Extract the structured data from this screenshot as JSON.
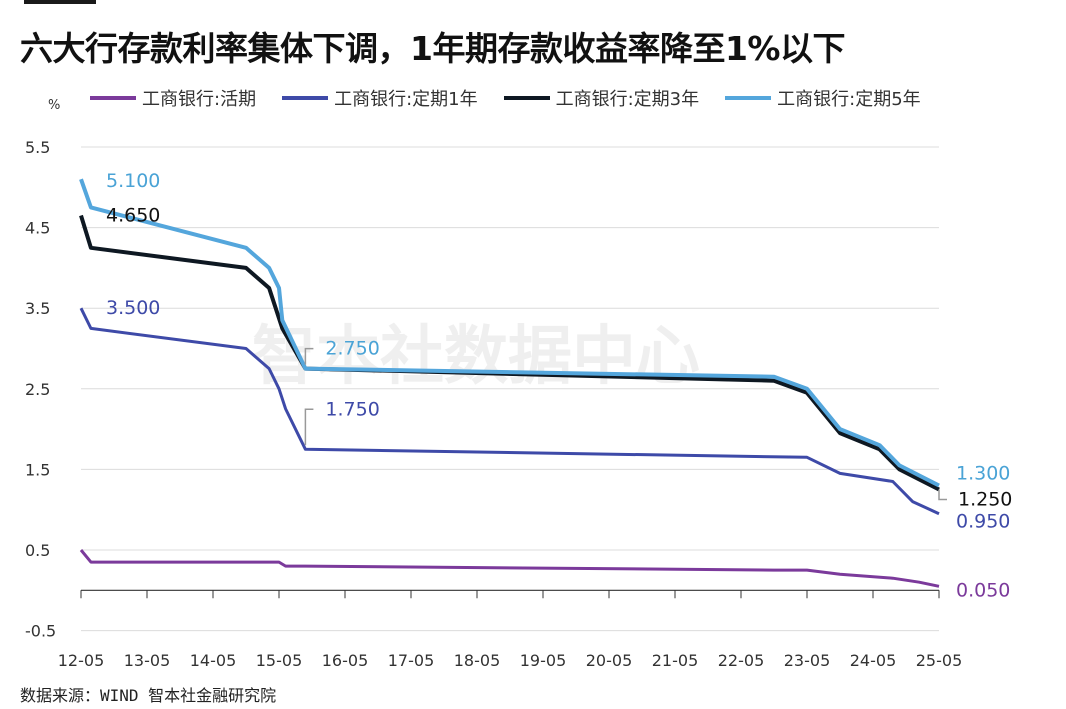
{
  "title": "六大行存款利率集体下调，1年期存款收益率降至1%以下",
  "source": "数据来源：WIND 智本社金融研究院",
  "watermark": "智本社数据中心",
  "chart_data": {
    "type": "line",
    "unit": "%",
    "ylim": [
      -0.5,
      5.5
    ],
    "yticks": [
      5.5,
      4.5,
      3.5,
      2.5,
      1.5,
      0.5,
      -0.5
    ],
    "xticks": [
      "12-05",
      "13-05",
      "14-05",
      "15-05",
      "16-05",
      "17-05",
      "18-05",
      "19-05",
      "20-05",
      "21-05",
      "22-05",
      "23-05",
      "24-05",
      "25-05"
    ],
    "grid": true,
    "legend_position": "top",
    "series": [
      {
        "name": "工商银行:活期",
        "color": "#7b3a9b",
        "points": [
          [
            0,
            0.5
          ],
          [
            0.15,
            0.35
          ],
          [
            3.0,
            0.35
          ],
          [
            3.1,
            0.3
          ],
          [
            3.4,
            0.3
          ],
          [
            10.5,
            0.25
          ],
          [
            11.0,
            0.25
          ],
          [
            11.5,
            0.2
          ],
          [
            12.3,
            0.15
          ],
          [
            12.7,
            0.1
          ],
          [
            13.0,
            0.05
          ]
        ],
        "end_label": "0.050",
        "label_color": "#7b3a9b"
      },
      {
        "name": "工商银行:定期1年",
        "color": "#3e4aa8",
        "points": [
          [
            0,
            3.5
          ],
          [
            0.15,
            3.25
          ],
          [
            2.5,
            3.0
          ],
          [
            2.85,
            2.75
          ],
          [
            3.0,
            2.5
          ],
          [
            3.1,
            2.25
          ],
          [
            3.4,
            1.75
          ],
          [
            11.0,
            1.65
          ],
          [
            11.5,
            1.45
          ],
          [
            12.3,
            1.35
          ],
          [
            12.6,
            1.1
          ],
          [
            13.0,
            0.95
          ]
        ],
        "start_label": "3.500",
        "mid_label": "1.750",
        "end_label": "0.950",
        "label_color": "#3e4aa8"
      },
      {
        "name": "工商银行:定期3年",
        "color": "#0e1822",
        "points": [
          [
            0,
            4.65
          ],
          [
            0.15,
            4.25
          ],
          [
            2.5,
            4.0
          ],
          [
            2.85,
            3.75
          ],
          [
            3.05,
            3.25
          ],
          [
            3.4,
            2.75
          ],
          [
            10.5,
            2.6
          ],
          [
            11.0,
            2.45
          ],
          [
            11.5,
            1.95
          ],
          [
            12.1,
            1.75
          ],
          [
            12.4,
            1.5
          ],
          [
            13.0,
            1.25
          ]
        ],
        "start_label": "4.650",
        "end_label": "1.250",
        "label_color": "#111111"
      },
      {
        "name": "工商银行:定期5年",
        "color": "#54a6dc",
        "points": [
          [
            0,
            5.1
          ],
          [
            0.15,
            4.75
          ],
          [
            2.5,
            4.25
          ],
          [
            2.85,
            4.0
          ],
          [
            3.0,
            3.75
          ],
          [
            3.05,
            3.35
          ],
          [
            3.4,
            2.75
          ],
          [
            10.5,
            2.65
          ],
          [
            11.0,
            2.5
          ],
          [
            11.5,
            2.0
          ],
          [
            12.1,
            1.8
          ],
          [
            12.4,
            1.55
          ],
          [
            13.0,
            1.3
          ]
        ],
        "start_label": "5.100",
        "mid_label": "2.750",
        "end_label": "1.300",
        "label_color": "#4aa3d6"
      }
    ]
  }
}
